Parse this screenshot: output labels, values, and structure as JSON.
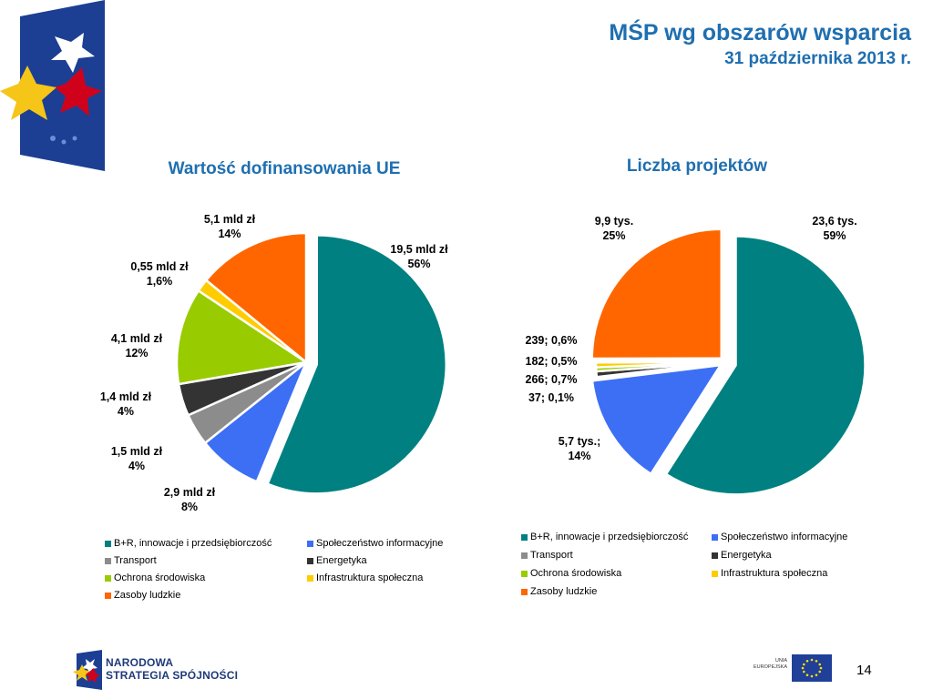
{
  "header": {
    "title": "MŚP wg obszarów wsparcia",
    "subtitle": "31 października 2013 r."
  },
  "legend_categories": [
    {
      "label": "B+R, innowacje i przedsiębiorczość",
      "color": "#008080"
    },
    {
      "label": "Społeczeństwo informacyjne",
      "color": "#3d6ff5"
    },
    {
      "label": "Transport",
      "color": "#8c8c8c"
    },
    {
      "label": "Energetyka",
      "color": "#333333"
    },
    {
      "label": "Ochrona środowiska",
      "color": "#99cc00"
    },
    {
      "label": "Infrastruktura społeczna",
      "color": "#ffcc00"
    },
    {
      "label": "Zasoby ludzkie",
      "color": "#ff6600"
    }
  ],
  "chart_data": [
    {
      "type": "pie",
      "title": "Wartość dofinansowania UE",
      "categories": [
        "B+R, innowacje i przedsiębiorczość",
        "Społeczeństwo informacyjne",
        "Transport",
        "Energetyka",
        "Ochrona środowiska",
        "Infrastruktura społeczna",
        "Zasoby ludzkie"
      ],
      "values": [
        56,
        8,
        4,
        4,
        12,
        1.6,
        14
      ],
      "data_labels": [
        [
          "19,5 mld zł",
          "56%"
        ],
        [
          "2,9 mld zł",
          "8%"
        ],
        [
          "1,5 mld zł",
          "4%"
        ],
        [
          "1,4 mld zł",
          "4%"
        ],
        [
          "4,1 mld zł",
          "12%"
        ],
        [
          "0,55 mld zł",
          "1,6%"
        ],
        [
          "5,1 mld zł",
          "14%"
        ]
      ],
      "legend_position": "bottom"
    },
    {
      "type": "pie",
      "title": "Liczba projektów",
      "categories": [
        "B+R, innowacje i przedsiębiorczość",
        "Społeczeństwo informacyjne",
        "Transport",
        "Energetyka",
        "Ochrona środowiska",
        "Infrastruktura społeczna",
        "Zasoby ludzkie"
      ],
      "values": [
        59,
        14,
        0.1,
        0.7,
        0.5,
        0.6,
        25
      ],
      "data_labels": [
        [
          "23,6 tys.",
          "59%"
        ],
        [
          "5,7 tys.;",
          "14%"
        ],
        [
          "37; 0,1%"
        ],
        [
          "266; 0,7%"
        ],
        [
          "182; 0,5%"
        ],
        [
          "239; 0,6%"
        ],
        [
          "9,9 tys.",
          "25%"
        ]
      ],
      "legend_position": "bottom"
    }
  ],
  "footer": {
    "nss_line1": "NARODOWA",
    "nss_line2": "STRATEGIA SPÓJNOŚCI",
    "eu_line1": "UNIA",
    "eu_line2": "EUROPEJSKA",
    "page_number": "14"
  },
  "icons": [
    "kapital-ludzki-logo",
    "nss-logo",
    "eu-flag-icon"
  ]
}
